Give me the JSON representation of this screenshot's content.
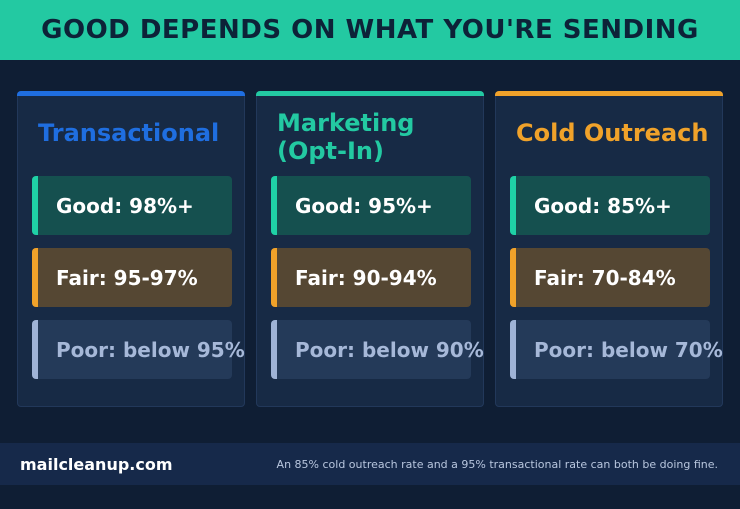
{
  "header": {
    "title": "GOOD DEPENDS ON WHAT YOU'RE SENDING",
    "background": "#23c9a2"
  },
  "panels": [
    {
      "title": "Transactional",
      "accent": "#1f6ee0",
      "good": "Good: 98%+",
      "fair": "Fair: 95-97%",
      "poor": "Poor: below 95%"
    },
    {
      "title_line1": "Marketing",
      "title_line2": "(Opt-In)",
      "accent": "#23c9a2",
      "good": "Good: 95%+",
      "fair": "Fair: 90-94%",
      "poor": "Poor: below 90%"
    },
    {
      "title": "Cold Outreach",
      "accent": "#f0a22a",
      "good": "Good: 85%+",
      "fair": "Fair: 70-84%",
      "poor": "Poor: below 70%"
    }
  ],
  "footer": {
    "site": "mailcleanup.com",
    "note": "An 85% cold outreach rate and a 95% transactional rate can both be doing fine."
  }
}
